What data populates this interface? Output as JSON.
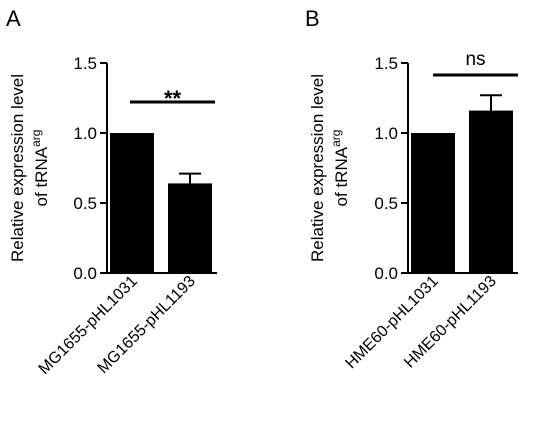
{
  "panels": [
    {
      "letter": "A",
      "ylabel_line1": "Relative expression level",
      "ylabel_line2_prefix": "of tRNA",
      "ylabel_line2_sup": "arg"
    },
    {
      "letter": "B",
      "ylabel_line1": "Relative expression level",
      "ylabel_line2_prefix": "of tRNA",
      "ylabel_line2_sup": "arg"
    }
  ],
  "chart_data": [
    {
      "type": "bar",
      "categories": [
        "MG1655-pHL1031",
        "MG1655-pHL1193"
      ],
      "values": [
        1.0,
        0.64
      ],
      "error": [
        0,
        0.07
      ],
      "ylabel": "Relative expression level of tRNAarg",
      "ylim": [
        0,
        1.5
      ],
      "yticks": [
        "0.0",
        "0.5",
        "1.0",
        "1.5"
      ],
      "significance": "**",
      "bar_color": "#000000"
    },
    {
      "type": "bar",
      "categories": [
        "HME60-pHL1031",
        "HME60-pHL1193"
      ],
      "values": [
        1.0,
        1.16
      ],
      "error": [
        0,
        0.11
      ],
      "ylabel": "Relative expression level of tRNAarg",
      "ylim": [
        0,
        1.5
      ],
      "yticks": [
        "0.0",
        "0.5",
        "1.0",
        "1.5"
      ],
      "significance": "ns",
      "bar_color": "#000000"
    }
  ]
}
